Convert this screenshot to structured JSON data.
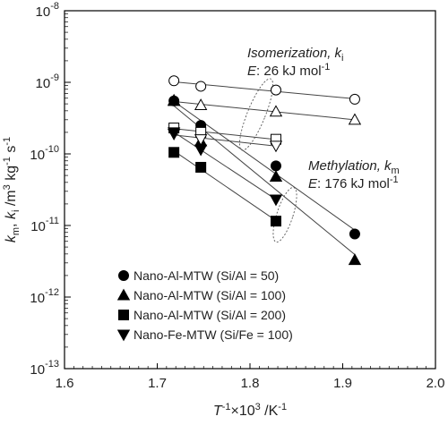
{
  "chart_data": {
    "type": "scatter",
    "log_y": true,
    "xlim": [
      1.6,
      2.0
    ],
    "ylim": [
      1e-13,
      1e-08
    ],
    "x_ticks": [
      "1.6",
      "1.7",
      "1.8",
      "1.9",
      "2.0"
    ],
    "y_ticks": [
      {
        "base": "10",
        "exp": "-13"
      },
      {
        "base": "10",
        "exp": "-12"
      },
      {
        "base": "10",
        "exp": "-11"
      },
      {
        "base": "10",
        "exp": "-10"
      },
      {
        "base": "10",
        "exp": "-9"
      },
      {
        "base": "10",
        "exp": "-8"
      }
    ],
    "xlabel": {
      "t": "T",
      "sup1": "-1",
      "mid": "×10",
      "sup2": "3",
      "tail": " /K",
      "sup3": "-1"
    },
    "ylabel": {
      "k": "k",
      "sub1": "m",
      "sep": ", ",
      "k2": "k",
      "sub2": "i",
      "unit": " /m",
      "sup1": "3",
      "unit2": " kg",
      "sup2": "-1",
      "unit3": " s",
      "sup3": "-1"
    },
    "annotations": {
      "isomerization": {
        "line1_text": "Isomerization, ",
        "line1_k": "k",
        "line1_sub": "i",
        "line2_e": "E",
        "line2_text": ": 26 kJ mol",
        "line2_sup": "-1"
      },
      "methylation": {
        "line1_text": "Methylation, ",
        "line1_k": "k",
        "line1_sub": "m",
        "line2_e": "E",
        "line2_text": ": 176 kJ mol",
        "line2_sup": "-1"
      }
    },
    "series": [
      {
        "name": "Nano-Al-MTW (Si/Al = 50)",
        "marker": "circle",
        "km": {
          "x": [
            1.718,
            1.747,
            1.828,
            1.913
          ],
          "y": [
            5.5e-10,
            2.5e-10,
            6.8e-11,
            7.6e-12
          ]
        },
        "ki": {
          "x": [
            1.718,
            1.747,
            1.828,
            1.913
          ],
          "y": [
            1.05e-09,
            8.8e-10,
            7.8e-10,
            5.8e-10
          ]
        }
      },
      {
        "name": "Nano-Al-MTW (Si/Al = 100)",
        "marker": "triangle-up",
        "km": {
          "x": [
            1.718,
            1.747,
            1.828,
            1.913
          ],
          "y": [
            5.6e-10,
            1.5e-10,
            4.8e-11,
            3.3e-12
          ]
        },
        "ki": {
          "x": [
            1.718,
            1.747,
            1.828,
            1.913
          ],
          "y": [
            5.5e-10,
            4.8e-10,
            3.9e-10,
            3e-10
          ]
        }
      },
      {
        "name": "Nano-Al-MTW (Si/Al = 200)",
        "marker": "square",
        "km": {
          "x": [
            1.718,
            1.747,
            1.828
          ],
          "y": [
            1.05e-10,
            6.5e-11,
            1.15e-11
          ]
        },
        "ki": {
          "x": [
            1.718,
            1.747,
            1.828
          ],
          "y": [
            2.3e-10,
            2e-10,
            1.6e-10
          ]
        }
      },
      {
        "name": "Nano-Fe-MTW (Si/Fe = 100)",
        "marker": "triangle-down",
        "km": {
          "x": [
            1.718,
            1.747,
            1.828
          ],
          "y": [
            2e-10,
            1.15e-10,
            2.3e-11
          ]
        },
        "ki": {
          "x": [
            1.718,
            1.747,
            1.828
          ],
          "y": [
            1.9e-10,
            1.6e-10,
            1.3e-10
          ]
        }
      }
    ],
    "colors": {
      "marker_fill": "#000000",
      "open_fill": "#ffffff",
      "line": "#444444",
      "frame": "#000000"
    }
  }
}
